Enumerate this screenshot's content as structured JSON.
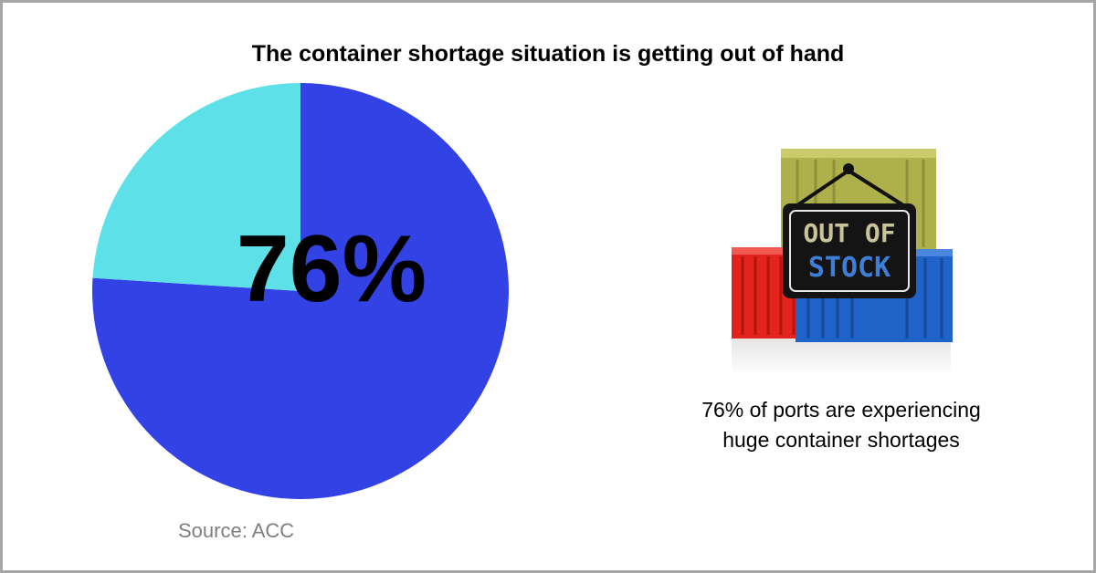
{
  "title": "The container shortage situation is getting out of hand",
  "source": "Source: ACC",
  "caption_line1": "76% of ports are experiencing",
  "caption_line2": "huge container shortages",
  "sign": {
    "line1": "OUT OF",
    "line2": "STOCK"
  },
  "icons": [
    "shipping-containers-icon",
    "out-of-stock-sign-icon"
  ],
  "colors": {
    "primary_slice": "#3242e4",
    "secondary_slice": "#5ee0e8",
    "container_red": "#e3241e",
    "container_blue": "#1f63c9",
    "container_olive": "#aeb04c"
  },
  "chart_data": {
    "type": "pie",
    "title": "The container shortage situation is getting out of hand",
    "label": "76%",
    "categories": [
      "",
      ""
    ],
    "values": [
      76,
      24
    ],
    "colors": [
      "#3242e4",
      "#5ee0e8"
    ],
    "start_angle_deg": 0,
    "direction": "clockwise",
    "legend": "none"
  }
}
